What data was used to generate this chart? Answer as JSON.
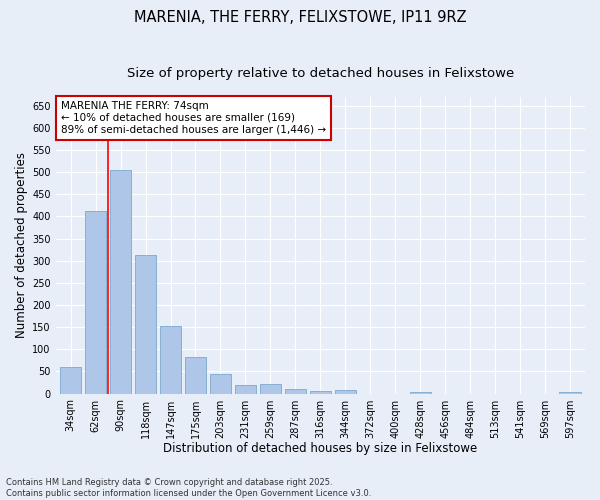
{
  "title": "MARENIA, THE FERRY, FELIXSTOWE, IP11 9RZ",
  "subtitle": "Size of property relative to detached houses in Felixstowe",
  "xlabel": "Distribution of detached houses by size in Felixstowe",
  "ylabel": "Number of detached properties",
  "categories": [
    "34sqm",
    "62sqm",
    "90sqm",
    "118sqm",
    "147sqm",
    "175sqm",
    "203sqm",
    "231sqm",
    "259sqm",
    "287sqm",
    "316sqm",
    "344sqm",
    "372sqm",
    "400sqm",
    "428sqm",
    "456sqm",
    "484sqm",
    "513sqm",
    "541sqm",
    "569sqm",
    "597sqm"
  ],
  "values": [
    60,
    413,
    505,
    313,
    153,
    83,
    45,
    20,
    22,
    10,
    6,
    7,
    0,
    0,
    4,
    0,
    0,
    0,
    0,
    0,
    4
  ],
  "bar_color": "#aec6e8",
  "bar_edge_color": "#6b9fc8",
  "annotation_text": "MARENIA THE FERRY: 74sqm\n← 10% of detached houses are smaller (169)\n89% of semi-detached houses are larger (1,446) →",
  "annotation_box_color": "#ffffff",
  "annotation_box_edge_color": "#cc0000",
  "ylim": [
    0,
    670
  ],
  "yticks": [
    0,
    50,
    100,
    150,
    200,
    250,
    300,
    350,
    400,
    450,
    500,
    550,
    600,
    650
  ],
  "bg_color": "#e8eef8",
  "plot_bg_color": "#e8eef8",
  "grid_color": "#ffffff",
  "footer": "Contains HM Land Registry data © Crown copyright and database right 2025.\nContains public sector information licensed under the Open Government Licence v3.0.",
  "title_fontsize": 10.5,
  "subtitle_fontsize": 9.5,
  "label_fontsize": 8.5,
  "tick_fontsize": 7,
  "annot_fontsize": 7.5,
  "footer_fontsize": 6
}
